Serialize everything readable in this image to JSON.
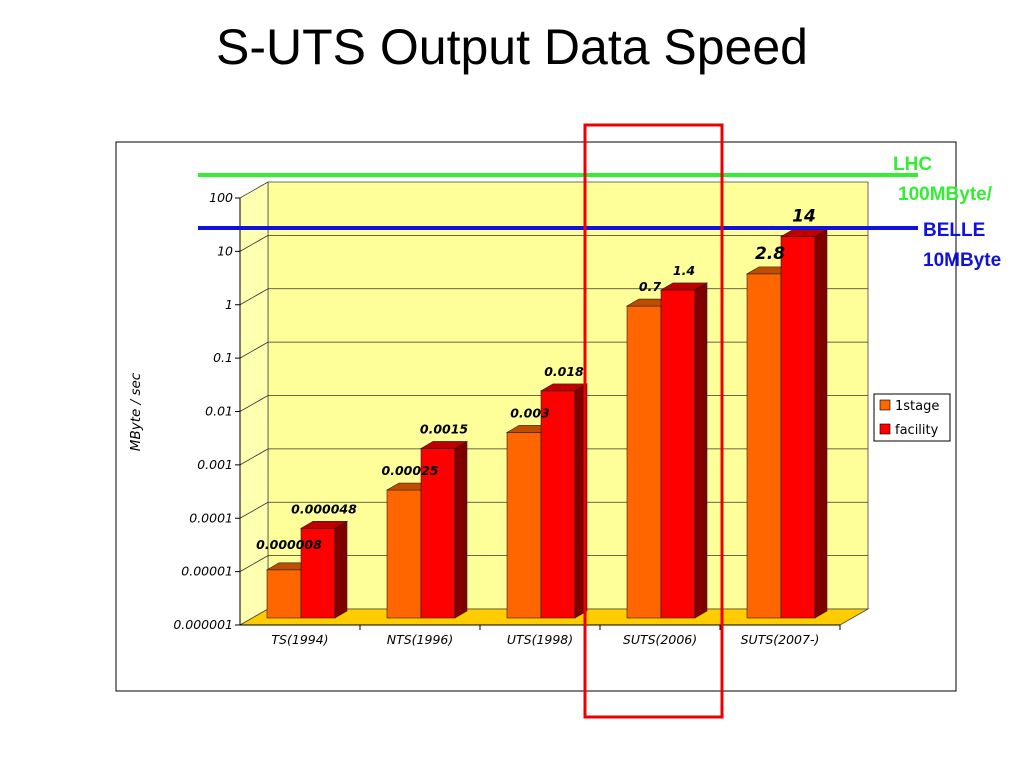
{
  "slide": {
    "title": "S-UTS Output Data Speed"
  },
  "chart_data": {
    "type": "bar",
    "scale": "log",
    "ylim": [
      1e-06,
      100
    ],
    "ylabel": "MByte / sec",
    "xlabel": "",
    "grid": true,
    "legend": "right",
    "y_ticks": [
      "100",
      "10",
      "1",
      "0.1",
      "0.01",
      "0.001",
      "0.0001",
      "0.00001",
      "0.000001"
    ],
    "categories": [
      "TS(1994)",
      "NTS(1996)",
      "UTS(1998)",
      "SUTS(2006)",
      "SUTS(2007-)"
    ],
    "series": [
      {
        "name": "1stage",
        "color": "#FF6600",
        "values": [
          8e-06,
          0.00025,
          0.003,
          0.7,
          2.8
        ],
        "labels": [
          "0.000008",
          "0.00025",
          "0.003",
          "0.7",
          "2.8"
        ]
      },
      {
        "name": "facility",
        "color": "#FF0000",
        "values": [
          4.8e-05,
          0.0015,
          0.018,
          1.4,
          14
        ],
        "labels": [
          "0.000048",
          "0.0015",
          "0.018",
          "1.4",
          "14"
        ]
      }
    ],
    "reference_lines": [
      {
        "name": "LHC",
        "value_label": "100MByte/",
        "color": "#33EE33",
        "value": 100
      },
      {
        "name": "BELLE",
        "value_label": "10MByte",
        "color": "#1111DD",
        "value": 10
      }
    ],
    "highlight_category": "SUTS(2006)",
    "highlight_color": "#EE0000"
  }
}
